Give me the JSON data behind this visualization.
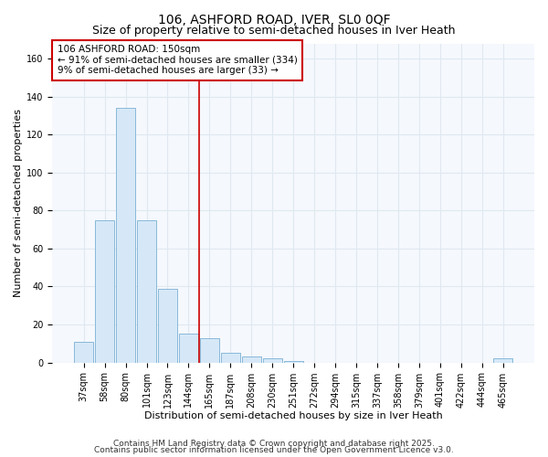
{
  "title": "106, ASHFORD ROAD, IVER, SL0 0QF",
  "subtitle": "Size of property relative to semi-detached houses in Iver Heath",
  "xlabel": "Distribution of semi-detached houses by size in Iver Heath",
  "ylabel": "Number of semi-detached properties",
  "bar_labels": [
    "37sqm",
    "58sqm",
    "80sqm",
    "101sqm",
    "123sqm",
    "144sqm",
    "165sqm",
    "187sqm",
    "208sqm",
    "230sqm",
    "251sqm",
    "272sqm",
    "294sqm",
    "315sqm",
    "337sqm",
    "358sqm",
    "379sqm",
    "401sqm",
    "422sqm",
    "444sqm",
    "465sqm"
  ],
  "bar_values": [
    11,
    75,
    134,
    75,
    39,
    15,
    13,
    5,
    3,
    2,
    1,
    0,
    0,
    0,
    0,
    0,
    0,
    0,
    0,
    0,
    2
  ],
  "bar_color": "#d6e8f7",
  "bar_edge_color": "#7ab0d4",
  "vline_x": 5.5,
  "vline_color": "#cc0000",
  "annotation_title": "106 ASHFORD ROAD: 150sqm",
  "annotation_line1": "← 91% of semi-detached houses are smaller (334)",
  "annotation_line2": "9% of semi-detached houses are larger (33) →",
  "annotation_box_color": "white",
  "annotation_box_edge": "#cc0000",
  "ylim": [
    0,
    168
  ],
  "yticks": [
    0,
    20,
    40,
    60,
    80,
    100,
    120,
    140,
    160
  ],
  "footnote1": "Contains HM Land Registry data © Crown copyright and database right 2025.",
  "footnote2": "Contains public sector information licensed under the Open Government Licence v3.0.",
  "fig_bg_color": "#ffffff",
  "plot_bg_color": "#f5f8fd",
  "grid_color": "#e0e8f0",
  "title_fontsize": 10,
  "subtitle_fontsize": 9,
  "axis_label_fontsize": 8,
  "tick_fontsize": 7,
  "annotation_fontsize": 7.5,
  "footnote_fontsize": 6.5,
  "spine_color": "#cccccc"
}
